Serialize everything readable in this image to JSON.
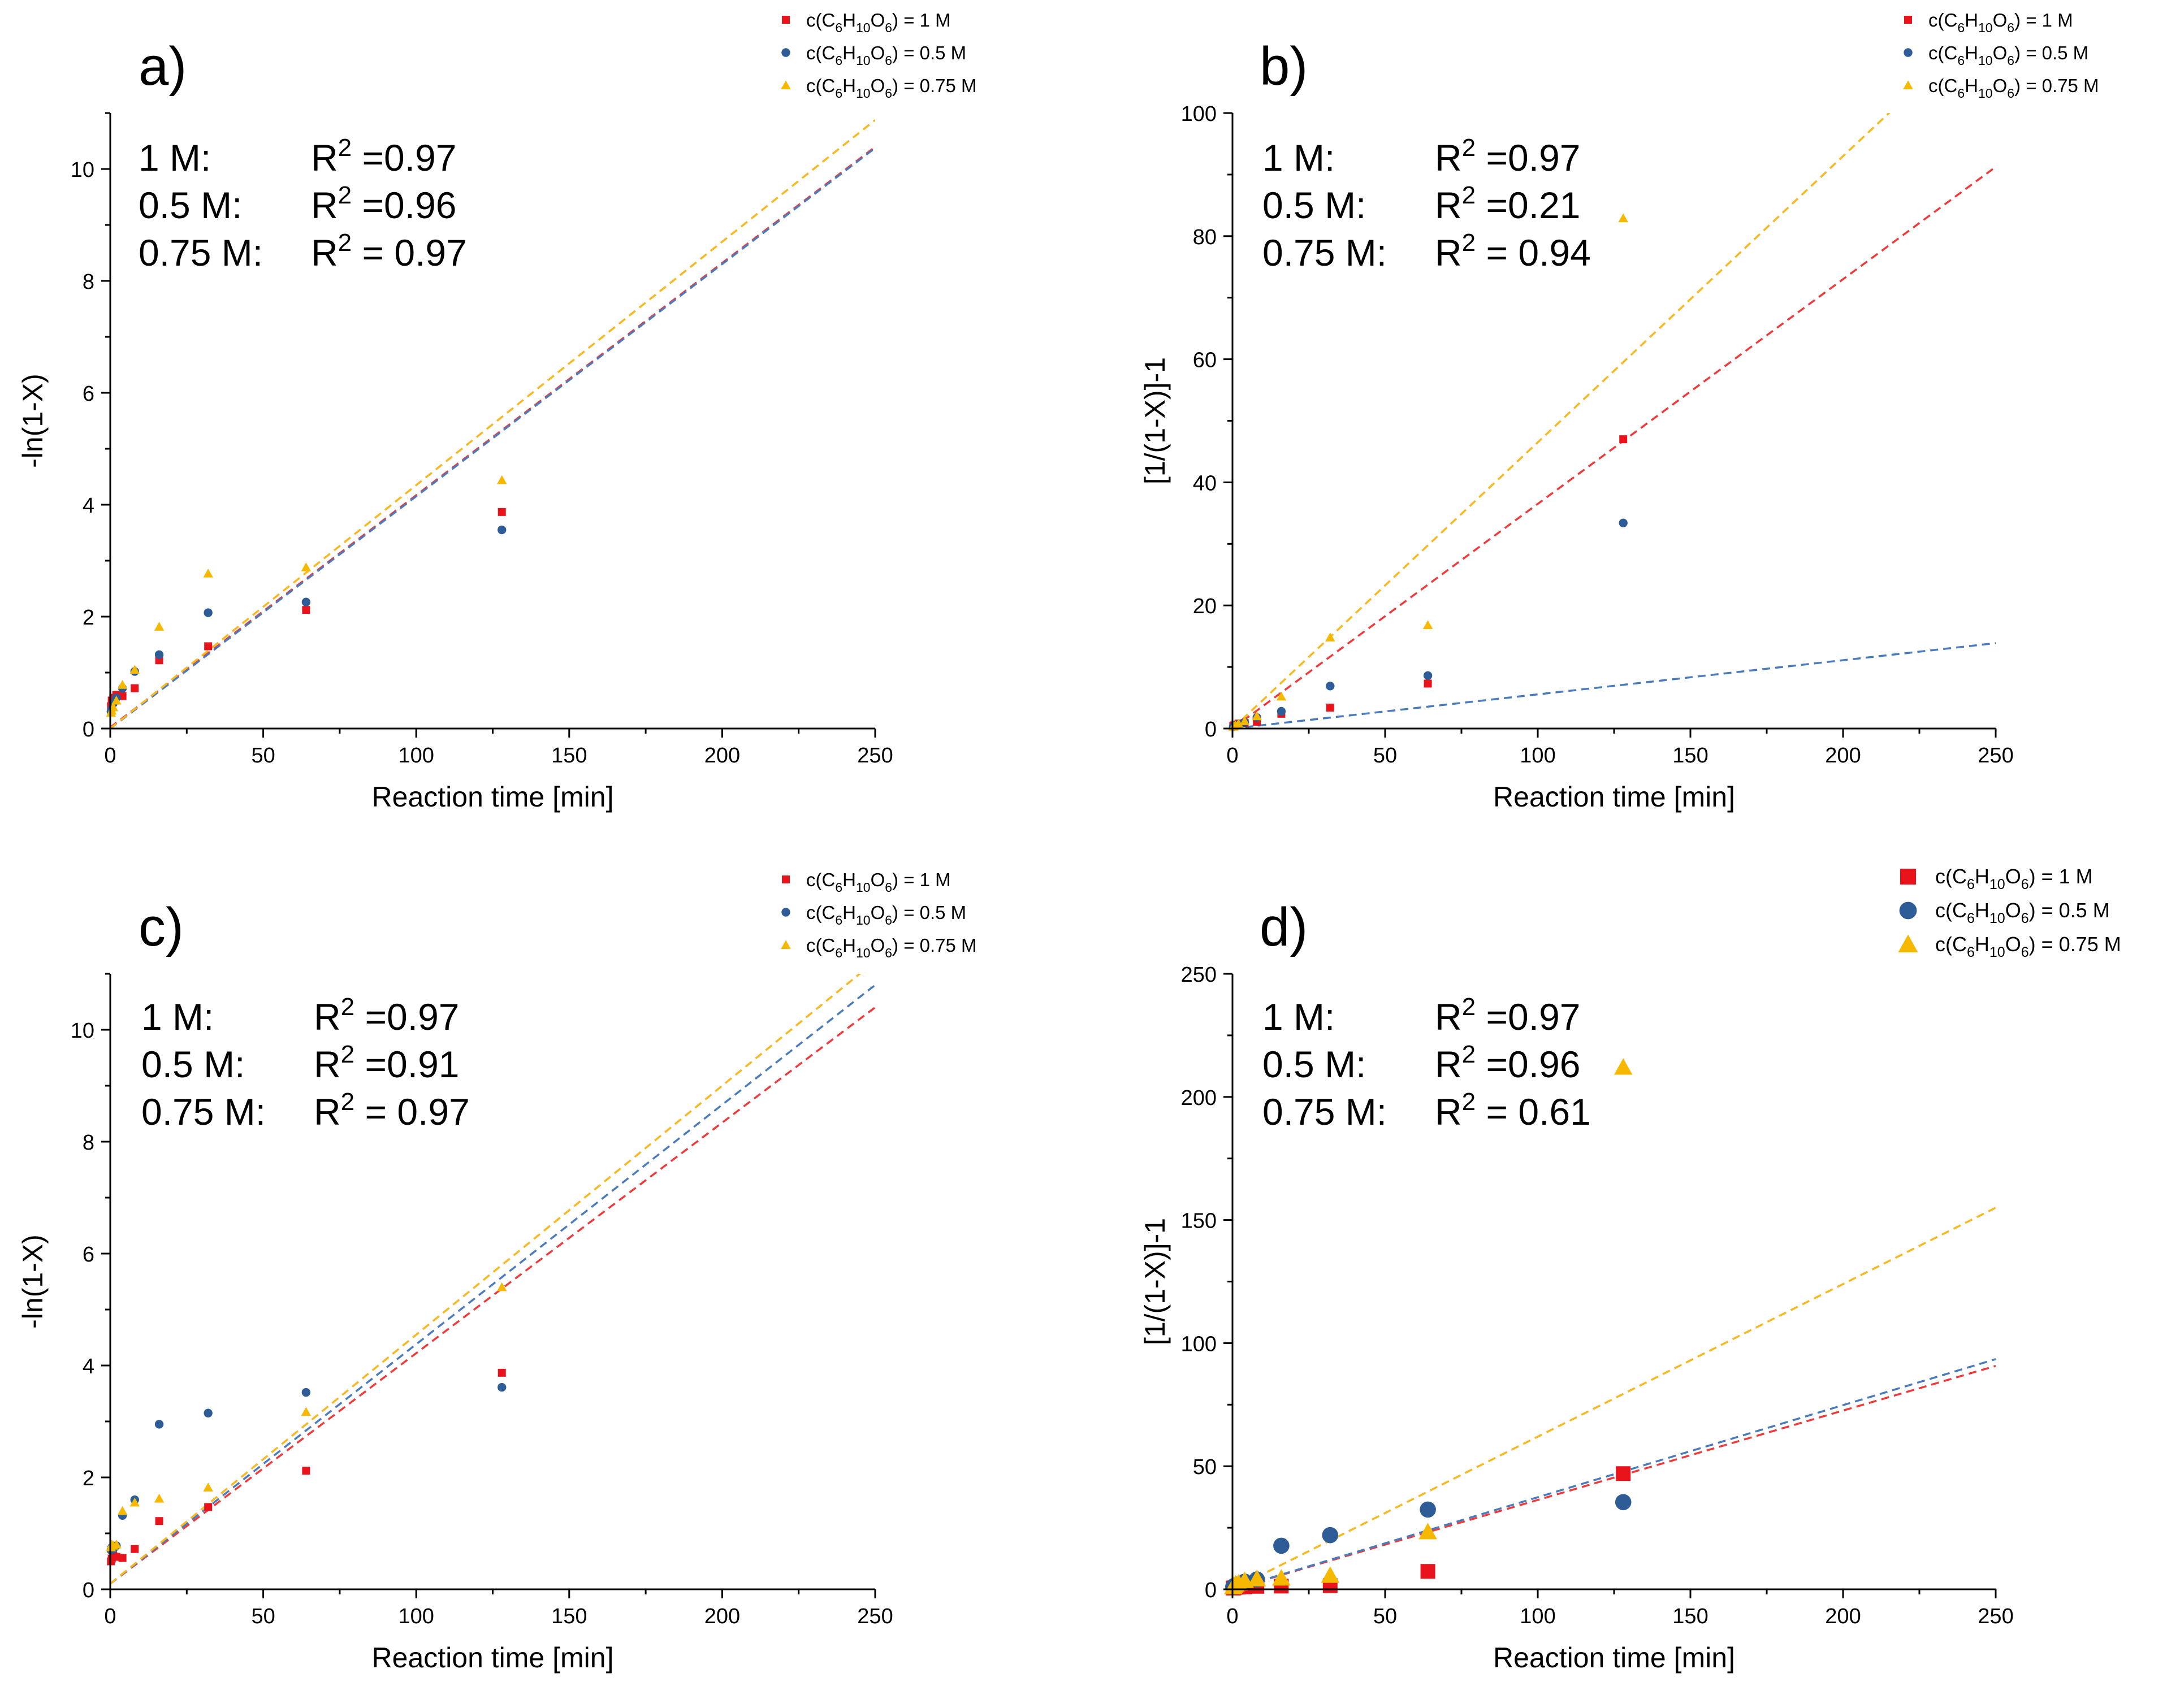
{
  "colors": {
    "red": "#e8131b",
    "blue": "#2e5c97",
    "yellow": "#f6b900",
    "red_fit": "#ee3a3a",
    "blue_fit": "#4a7bbd",
    "yellow_fit": "#f8b822"
  },
  "chart_data": [
    {
      "type": "scatter",
      "panel_label": "a)",
      "xlabel": "Reaction time [min]",
      "ylabel": "-ln(1-X)",
      "xlim": [
        0,
        250
      ],
      "ylim": [
        0,
        11
      ],
      "xticks": [
        "0",
        "50",
        "100",
        "150",
        "200",
        "250"
      ],
      "yticks": [
        "0",
        "2",
        "4",
        "6",
        "8",
        "10"
      ],
      "marker_scale": 1,
      "legend": [
        {
          "pre": "c(C",
          "s1": "6",
          "m1": "H",
          "s2": "10",
          "m2": "O",
          "s3": "6",
          "post": ") = 1 M"
        },
        {
          "pre": "c(C",
          "s1": "6",
          "m1": "H",
          "s2": "10",
          "m2": "O",
          "s3": "6",
          "post": ") = 0.5 M"
        },
        {
          "pre": "c(C",
          "s1": "6",
          "m1": "H",
          "s2": "10",
          "m2": "O",
          "s3": "6",
          "post": ") = 0.75 M"
        }
      ],
      "r2": [
        {
          "label": "1 M:",
          "pre": "R",
          "sup": "2",
          "post": " =0.97"
        },
        {
          "label": "0.5 M:",
          "pre": "R",
          "sup": "2",
          "post": " =0.96"
        },
        {
          "label": "0.75 M:",
          "pre": "R",
          "sup": "2",
          "post": " = 0.97"
        }
      ],
      "series": [
        {
          "name": "1 M",
          "marker": "square",
          "color": "#e8131b",
          "x": [
            0.25,
            0.5,
            1,
            2,
            4,
            8,
            16,
            32,
            64,
            128
          ],
          "y": [
            0.4,
            0.5,
            0.55,
            0.6,
            0.58,
            0.72,
            1.22,
            1.47,
            2.12,
            3.87
          ],
          "fit_slope": 0.0415,
          "fit_intercept": 0.02,
          "fit_color": "#ee3a3a"
        },
        {
          "name": "0.5 M",
          "marker": "circle",
          "color": "#2e5c97",
          "x": [
            0.25,
            0.5,
            1,
            2,
            4,
            8,
            16,
            32,
            64,
            128
          ],
          "y": [
            0.3,
            0.35,
            0.45,
            0.55,
            0.72,
            1.02,
            1.32,
            2.07,
            2.26,
            3.55
          ],
          "fit_slope": 0.0415,
          "fit_intercept": 0.0,
          "fit_color": "#4a7bbd"
        },
        {
          "name": "0.75 M",
          "marker": "triangle",
          "color": "#f6b900",
          "x": [
            0.25,
            0.5,
            1,
            2,
            4,
            8,
            16,
            32,
            64,
            128
          ],
          "y": [
            0.28,
            0.32,
            0.38,
            0.5,
            0.78,
            1.05,
            1.82,
            2.77,
            2.88,
            4.44
          ],
          "fit_slope": 0.0435,
          "fit_intercept": 0.0,
          "fit_color": "#f8b822"
        }
      ]
    },
    {
      "type": "scatter",
      "panel_label": "b)",
      "xlabel": "Reaction time [min]",
      "ylabel": "[1/(1-X)]-1",
      "xlim": [
        0,
        250
      ],
      "ylim": [
        0,
        100
      ],
      "xticks": [
        "0",
        "50",
        "100",
        "150",
        "200",
        "250"
      ],
      "yticks": [
        "0",
        "20",
        "40",
        "60",
        "80",
        "100"
      ],
      "marker_scale": 1,
      "legend": [
        {
          "pre": "c(C",
          "s1": "6",
          "m1": "H",
          "s2": "10",
          "m2": "O",
          "s3": "6",
          "post": ") = 1 M"
        },
        {
          "pre": "c(C",
          "s1": "6",
          "m1": "H",
          "s2": "10",
          "m2": "O",
          "s3": "6",
          "post": ") = 0.5 M"
        },
        {
          "pre": "c(C",
          "s1": "6",
          "m1": "H",
          "s2": "10",
          "m2": "O",
          "s3": "6",
          "post": ") = 0.75 M"
        }
      ],
      "r2": [
        {
          "label": "1 M:",
          "pre": "R",
          "sup": "2",
          "post": " =0.97"
        },
        {
          "label": "0.5 M:",
          "pre": "R",
          "sup": "2",
          "post": " =0.21"
        },
        {
          "label": "0.75 M:",
          "pre": "R",
          "sup": "2",
          "post": " = 0.94"
        }
      ],
      "series": [
        {
          "name": "1 M",
          "marker": "square",
          "color": "#e8131b",
          "x": [
            0.25,
            0.5,
            1,
            2,
            4,
            8,
            16,
            32,
            64,
            128
          ],
          "y": [
            0.4,
            0.5,
            0.6,
            0.8,
            0.9,
            1.1,
            2.4,
            3.4,
            7.3,
            47
          ],
          "fit_slope": 0.365,
          "fit_intercept": 0.0,
          "fit_color": "#ee3a3a"
        },
        {
          "name": "0.5 M",
          "marker": "circle",
          "color": "#2e5c97",
          "x": [
            0.25,
            0.5,
            1,
            2,
            4,
            8,
            16,
            32,
            64,
            128
          ],
          "y": [
            0.3,
            0.4,
            0.5,
            0.7,
            1.0,
            1.8,
            2.8,
            6.9,
            8.6,
            33.4
          ],
          "fit_slope": 0.0555,
          "fit_intercept": 0.0,
          "fit_color": "#4a7bbd"
        },
        {
          "name": "0.75 M",
          "marker": "triangle",
          "color": "#f6b900",
          "x": [
            0.25,
            0.5,
            1,
            2,
            4,
            8,
            16,
            32,
            64,
            128
          ],
          "y": [
            0.3,
            0.4,
            0.5,
            0.8,
            1.2,
            2.0,
            5.2,
            14.8,
            16.8,
            82.9
          ],
          "fit_slope": 0.465,
          "fit_intercept": 0.0,
          "fit_color": "#f8b822"
        }
      ]
    },
    {
      "type": "scatter",
      "panel_label": "c)",
      "xlabel": "Reaction time [min]",
      "ylabel": "-ln(1-X)",
      "xlim": [
        0,
        250
      ],
      "ylim": [
        0,
        11
      ],
      "xticks": [
        "0",
        "50",
        "100",
        "150",
        "200",
        "250"
      ],
      "yticks": [
        "0",
        "2",
        "4",
        "6",
        "8",
        "10"
      ],
      "marker_scale": 1,
      "legend": [
        {
          "pre": "c(C",
          "s1": "6",
          "m1": "H",
          "s2": "10",
          "m2": "O",
          "s3": "6",
          "post": ") = 1 M"
        },
        {
          "pre": "c(C",
          "s1": "6",
          "m1": "H",
          "s2": "10",
          "m2": "O",
          "s3": "6",
          "post": ") = 0.5 M"
        },
        {
          "pre": "c(C",
          "s1": "6",
          "m1": "H",
          "s2": "10",
          "m2": "O",
          "s3": "6",
          "post": ") = 0.75 M"
        }
      ],
      "r2": [
        {
          "label": "1 M:",
          "pre": "R",
          "sup": "2",
          "post": " =0.97"
        },
        {
          "label": "0.5 M:",
          "pre": "R",
          "sup": "2",
          "post": " =0.91"
        },
        {
          "label": "0.75 M:",
          "pre": "R",
          "sup": "2",
          "post": " = 0.97"
        }
      ],
      "series": [
        {
          "name": "1 M",
          "marker": "square",
          "color": "#e8131b",
          "x": [
            0.25,
            0.5,
            1,
            2,
            4,
            8,
            16,
            32,
            64,
            128
          ],
          "y": [
            0.5,
            0.55,
            0.6,
            0.58,
            0.56,
            0.72,
            1.22,
            1.47,
            2.12,
            3.87
          ],
          "fit_slope": 0.0412,
          "fit_intercept": 0.1,
          "fit_color": "#ee3a3a"
        },
        {
          "name": "0.5 M",
          "marker": "circle",
          "color": "#2e5c97",
          "x": [
            0.25,
            0.5,
            1,
            2,
            4,
            8,
            16,
            32,
            64,
            128
          ],
          "y": [
            0.7,
            0.75,
            0.72,
            0.78,
            1.32,
            1.6,
            2.95,
            3.15,
            3.52,
            3.61
          ],
          "fit_slope": 0.0428,
          "fit_intercept": 0.1,
          "fit_color": "#4a7bbd"
        },
        {
          "name": "0.75 M",
          "marker": "triangle",
          "color": "#f6b900",
          "x": [
            0.25,
            0.5,
            1,
            2,
            4,
            8,
            16,
            32,
            64,
            128
          ],
          "y": [
            0.75,
            0.8,
            0.78,
            0.8,
            1.4,
            1.55,
            1.62,
            1.82,
            3.17,
            5.4
          ],
          "fit_slope": 0.0445,
          "fit_intercept": 0.1,
          "fit_color": "#f8b822"
        }
      ]
    },
    {
      "type": "scatter",
      "panel_label": "d)",
      "xlabel": "Reaction time [min]",
      "ylabel": "[1/(1-X)]-1",
      "xlim": [
        0,
        250
      ],
      "ylim": [
        0,
        250
      ],
      "xticks": [
        "0",
        "50",
        "100",
        "150",
        "200",
        "250"
      ],
      "yticks": [
        "0",
        "50",
        "100",
        "150",
        "200",
        "250"
      ],
      "marker_scale": 2,
      "legend": [
        {
          "pre": "c(C",
          "s1": "6",
          "m1": "H",
          "s2": "10",
          "m2": "O",
          "s3": "6",
          "post": ") = 1 M"
        },
        {
          "pre": "c(C",
          "s1": "6",
          "m1": "H",
          "s2": "10",
          "m2": "O",
          "s3": "6",
          "post": ") = 0.5 M"
        },
        {
          "pre": "c(C",
          "s1": "6",
          "m1": "H",
          "s2": "10",
          "m2": "O",
          "s3": "6",
          "post": ") = 0.75 M"
        }
      ],
      "r2": [
        {
          "label": "1 M:",
          "pre": "R",
          "sup": "2",
          "post": " =0.97"
        },
        {
          "label": "0.5 M:",
          "pre": "R",
          "sup": "2",
          "post": " =0.96"
        },
        {
          "label": "0.75 M:",
          "pre": "R",
          "sup": "2",
          "post": " = 0.61"
        }
      ],
      "series": [
        {
          "name": "1 M",
          "marker": "square",
          "color": "#e8131b",
          "x": [
            0.25,
            0.5,
            1,
            2,
            4,
            8,
            16,
            32,
            64,
            128
          ],
          "y": [
            0.5,
            0.6,
            0.8,
            0.9,
            1.0,
            1.2,
            1.3,
            1.5,
            7.3,
            47
          ],
          "fit_slope": 0.363,
          "fit_intercept": 0.0,
          "fit_color": "#ee3a3a"
        },
        {
          "name": "0.5 M",
          "marker": "circle",
          "color": "#2e5c97",
          "x": [
            0.25,
            0.5,
            1,
            2,
            4,
            8,
            16,
            32,
            64,
            128
          ],
          "y": [
            1.0,
            1.3,
            1.6,
            2.0,
            3.1,
            4.0,
            17.7,
            22.0,
            32.4,
            35.4
          ],
          "fit_slope": 0.374,
          "fit_intercept": 0.0,
          "fit_color": "#4a7bbd"
        },
        {
          "name": "0.75 M",
          "marker": "triangle",
          "color": "#f6b900",
          "x": [
            0.25,
            0.5,
            1,
            2,
            4,
            8,
            16,
            32,
            64,
            128
          ],
          "y": [
            1.0,
            1.5,
            2.0,
            2.5,
            3.5,
            4.2,
            4.5,
            5.6,
            23.3,
            212
          ],
          "fit_slope": 0.62,
          "fit_intercept": 0.0,
          "fit_color": "#f8b822"
        }
      ]
    }
  ]
}
